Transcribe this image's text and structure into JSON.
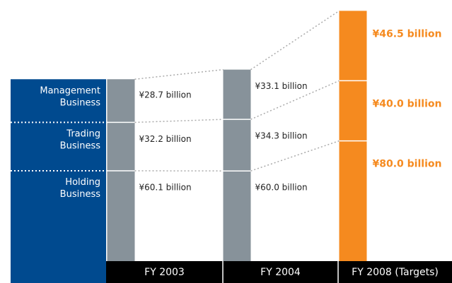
{
  "chart_data": {
    "type": "bar",
    "stacked": true,
    "categories": [
      "FY 2003",
      "FY 2004",
      "FY 2008 (Targets)"
    ],
    "bar_colors": [
      "#87929a",
      "#87929a",
      "#f58a1f"
    ],
    "series": [
      {
        "name": "Holding Business",
        "values": [
          60.1,
          60.0,
          80.0
        ],
        "value_labels": [
          "¥60.1 billion",
          "¥60.0 billion",
          "¥80.0 billion"
        ]
      },
      {
        "name": "Trading Business",
        "values": [
          32.2,
          34.3,
          40.0
        ],
        "value_labels": [
          "¥32.2 billion",
          "¥34.3 billion",
          "¥40.0 billion"
        ]
      },
      {
        "name": "Management Business",
        "values": [
          28.7,
          33.1,
          46.5
        ],
        "value_labels": [
          "¥28.7 billion",
          "¥33.1 billion",
          "¥46.5 billion"
        ]
      }
    ],
    "panel_color": "#004a8f"
  }
}
